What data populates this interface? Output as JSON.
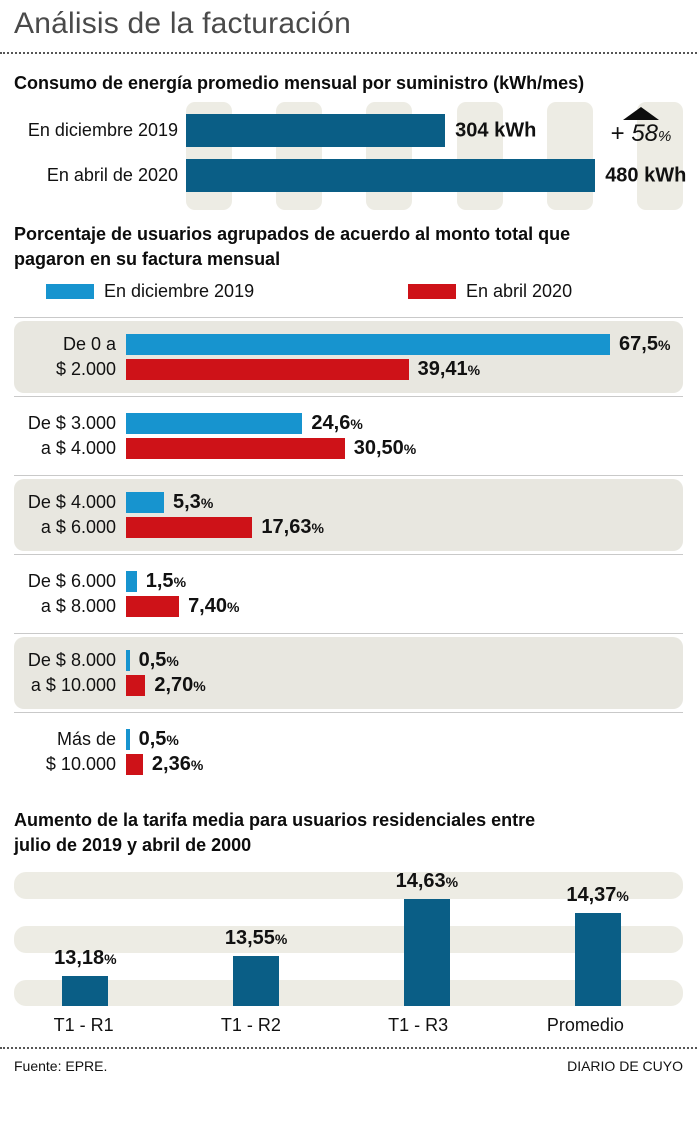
{
  "header": {
    "title": "Análisis de la facturación"
  },
  "footer": {
    "source": "Fuente: EPRE.",
    "credit": "DIARIO DE CUYO"
  },
  "percent_sign": "%",
  "colors": {
    "teal": "#0a5e86",
    "blue": "#1794cf",
    "red": "#ce1218",
    "stripe": "#edece4",
    "band": "#e8e7e0",
    "arrow": "#0d0d0d"
  },
  "chart_data": [
    {
      "type": "bar",
      "orientation": "horizontal",
      "title": "Consumo de energía promedio mensual por suministro (kWh/mes)",
      "categories": [
        "En diciembre 2019",
        "En abril de 2020"
      ],
      "values": [
        304,
        480
      ],
      "value_labels": [
        "304 kWh",
        "480 kWh"
      ],
      "unit": "kWh",
      "xlim": [
        0,
        583
      ],
      "grid": "vertical-stripes",
      "bar_color": "#0a5e86",
      "annotation": {
        "icon": "up-arrow",
        "plus": "+ ",
        "value": "58",
        "percent": "%"
      }
    },
    {
      "type": "bar",
      "orientation": "horizontal",
      "grouped": true,
      "title": "Porcentaje de usuarios agrupados de acuerdo al monto total que\npagaron en su factura mensual",
      "legend_position": "top",
      "categories": [
        [
          "De 0 a",
          "$ 2.000"
        ],
        [
          "De $ 3.000",
          "a $ 4.000"
        ],
        [
          "De $ 4.000",
          "a $ 6.000"
        ],
        [
          "De $ 6.000",
          "a $ 8.000"
        ],
        [
          "De $ 8.000",
          "a $ 10.000"
        ],
        [
          "Más de",
          "$ 10.000"
        ]
      ],
      "series": [
        {
          "name": "En diciembre 2019",
          "color": "#1794cf",
          "values": [
            67.5,
            24.6,
            5.3,
            1.5,
            0.5,
            0.5
          ],
          "labels": [
            "67,5",
            "24,6",
            "5,3",
            "1,5",
            "0,5",
            "0,5"
          ]
        },
        {
          "name": "En abril 2020",
          "color": "#ce1218",
          "values": [
            39.41,
            30.5,
            17.63,
            7.4,
            2.7,
            2.36
          ],
          "labels": [
            "39,41",
            "30,50",
            "17,63",
            "7,40",
            "2,70",
            "2,36"
          ]
        }
      ],
      "xlim": [
        0,
        76
      ]
    },
    {
      "type": "bar",
      "orientation": "vertical",
      "title": "Aumento de la tarifa media para usuarios residenciales entre\njulio de 2019 y abril de 2000",
      "categories": [
        "T1 - R1",
        "T1 - R2",
        "T1 - R3",
        "Promedio"
      ],
      "values": [
        13.18,
        13.55,
        14.63,
        14.37
      ],
      "labels": [
        "13,18",
        "13,55",
        "14,63",
        "14,37"
      ],
      "ylim": [
        12.6,
        15.15
      ],
      "grid": "horizontal-stripes",
      "bar_color": "#0a5e86"
    }
  ]
}
